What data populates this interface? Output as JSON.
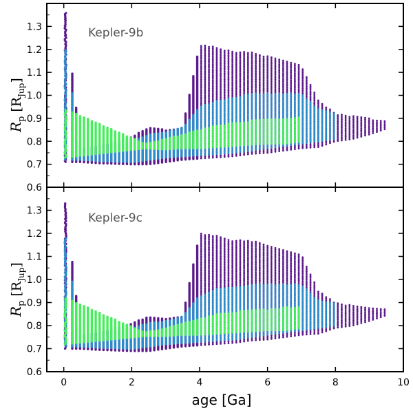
{
  "chart_data": [
    {
      "type": "scatter",
      "title": "Kepler-9b",
      "xlabel": "age [Ga]",
      "ylabel": {
        "symbol": "R",
        "sub": "p",
        "unit": "R",
        "unit_sub": "Jup"
      },
      "xlim": [
        -0.5,
        10
      ],
      "ylim": [
        0.6,
        1.4
      ],
      "xticks": [
        0,
        2,
        4,
        6,
        8,
        10
      ],
      "yticks": [
        0.6,
        0.7,
        0.8,
        0.9,
        1.0,
        1.1,
        1.2,
        1.3
      ],
      "show_xticklabels": false,
      "colors": {
        "purple": "#5b1a8b",
        "blue": "#2b8ccc",
        "green": "#45ee5a"
      },
      "series": [
        {
          "name": "purple",
          "color": "#5b1a8b",
          "envelope": {
            "x": [
              0.05,
              0.5,
              1.0,
              2.0,
              2.5,
              3.0,
              3.5,
              4.0,
              4.5,
              5.0,
              5.5,
              6.0,
              6.5,
              7.0,
              7.5,
              8.0,
              8.5,
              9.0,
              9.5
            ],
            "ymin": [
              0.71,
              0.71,
              0.705,
              0.7,
              0.7,
              0.71,
              0.72,
              0.725,
              0.73,
              0.735,
              0.745,
              0.75,
              0.76,
              0.77,
              0.775,
              0.8,
              0.81,
              0.83,
              0.855
            ],
            "ymax": [
              1.36,
              0.77,
              0.78,
              0.82,
              0.86,
              0.85,
              0.86,
              1.22,
              1.21,
              1.19,
              1.19,
              1.17,
              1.15,
              1.13,
              0.98,
              0.92,
              0.91,
              0.9,
              0.89
            ]
          }
        },
        {
          "name": "blue",
          "color": "#2b8ccc",
          "envelope": {
            "x": [
              0.05,
              0.5,
              1.0,
              2.0,
              2.5,
              3.0,
              3.5,
              4.0,
              4.5,
              5.0,
              5.5,
              6.0,
              6.5,
              7.0,
              7.5,
              8.0
            ],
            "ymin": [
              0.72,
              0.72,
              0.715,
              0.71,
              0.72,
              0.73,
              0.735,
              0.74,
              0.745,
              0.75,
              0.76,
              0.77,
              0.78,
              0.79,
              0.8,
              0.81
            ],
            "ymax": [
              1.2,
              0.77,
              0.78,
              0.8,
              0.83,
              0.84,
              0.86,
              0.95,
              0.98,
              0.99,
              1.01,
              1.01,
              1.01,
              1.01,
              0.94,
              0.92
            ]
          }
        },
        {
          "name": "green",
          "color": "#45ee5a",
          "envelope": {
            "x": [
              0.05,
              2.4,
              3.0,
              3.5,
              4.0,
              4.5,
              5.0,
              5.5,
              6.0,
              6.5,
              7.0
            ],
            "ymin": [
              0.73,
              0.77,
              0.765,
              0.77,
              0.77,
              0.775,
              0.78,
              0.785,
              0.79,
              0.79,
              0.8
            ],
            "ymax": [
              0.94,
              0.79,
              0.81,
              0.83,
              0.85,
              0.87,
              0.88,
              0.89,
              0.9,
              0.9,
              0.91
            ]
          }
        }
      ]
    },
    {
      "type": "scatter",
      "title": "Kepler-9c",
      "xlabel": "age [Ga]",
      "ylabel": {
        "symbol": "R",
        "sub": "p",
        "unit": "R",
        "unit_sub": "Jup"
      },
      "xlim": [
        -0.5,
        10
      ],
      "ylim": [
        0.6,
        1.4
      ],
      "xticks": [
        0,
        2,
        4,
        6,
        8,
        10
      ],
      "xticklabels": [
        "0",
        "2",
        "4",
        "6",
        "8",
        "10"
      ],
      "yticks": [
        0.6,
        0.7,
        0.8,
        0.9,
        1.0,
        1.1,
        1.2,
        1.3
      ],
      "show_xticklabels": true,
      "colors": {
        "purple": "#5b1a8b",
        "blue": "#2b8ccc",
        "green": "#45ee5a"
      },
      "series": [
        {
          "name": "purple",
          "color": "#5b1a8b",
          "envelope": {
            "x": [
              0.05,
              0.5,
              1.0,
              2.0,
              2.5,
              3.0,
              3.5,
              4.0,
              4.5,
              5.0,
              5.5,
              6.0,
              6.5,
              7.0,
              7.5,
              8.0,
              8.5,
              9.0,
              9.5
            ],
            "ymin": [
              0.7,
              0.7,
              0.695,
              0.69,
              0.69,
              0.7,
              0.71,
              0.715,
              0.72,
              0.725,
              0.735,
              0.74,
              0.75,
              0.76,
              0.765,
              0.79,
              0.8,
              0.82,
              0.845
            ],
            "ymax": [
              1.33,
              0.76,
              0.77,
              0.81,
              0.84,
              0.83,
              0.84,
              1.2,
              1.19,
              1.17,
              1.17,
              1.15,
              1.13,
              1.11,
              0.95,
              0.9,
              0.89,
              0.88,
              0.87
            ]
          }
        },
        {
          "name": "blue",
          "color": "#2b8ccc",
          "envelope": {
            "x": [
              0.05,
              0.5,
              1.0,
              2.0,
              2.5,
              3.0,
              3.5,
              4.0,
              4.5,
              5.0,
              5.5,
              6.0,
              6.5,
              7.0,
              7.5,
              8.0
            ],
            "ymin": [
              0.71,
              0.71,
              0.705,
              0.7,
              0.71,
              0.72,
              0.725,
              0.73,
              0.735,
              0.74,
              0.75,
              0.76,
              0.77,
              0.78,
              0.79,
              0.8
            ],
            "ymax": [
              1.18,
              0.76,
              0.77,
              0.79,
              0.81,
              0.82,
              0.84,
              0.93,
              0.96,
              0.97,
              0.98,
              0.98,
              0.98,
              0.98,
              0.91,
              0.9
            ]
          }
        },
        {
          "name": "green",
          "color": "#45ee5a",
          "envelope": {
            "x": [
              0.05,
              2.4,
              3.0,
              3.5,
              4.0,
              4.5,
              5.0,
              5.5,
              6.0,
              6.5,
              7.0
            ],
            "ymin": [
              0.72,
              0.755,
              0.755,
              0.76,
              0.76,
              0.765,
              0.77,
              0.775,
              0.78,
              0.78,
              0.79
            ],
            "ymax": [
              0.92,
              0.77,
              0.79,
              0.81,
              0.83,
              0.85,
              0.86,
              0.87,
              0.87,
              0.88,
              0.88
            ]
          }
        }
      ]
    }
  ]
}
